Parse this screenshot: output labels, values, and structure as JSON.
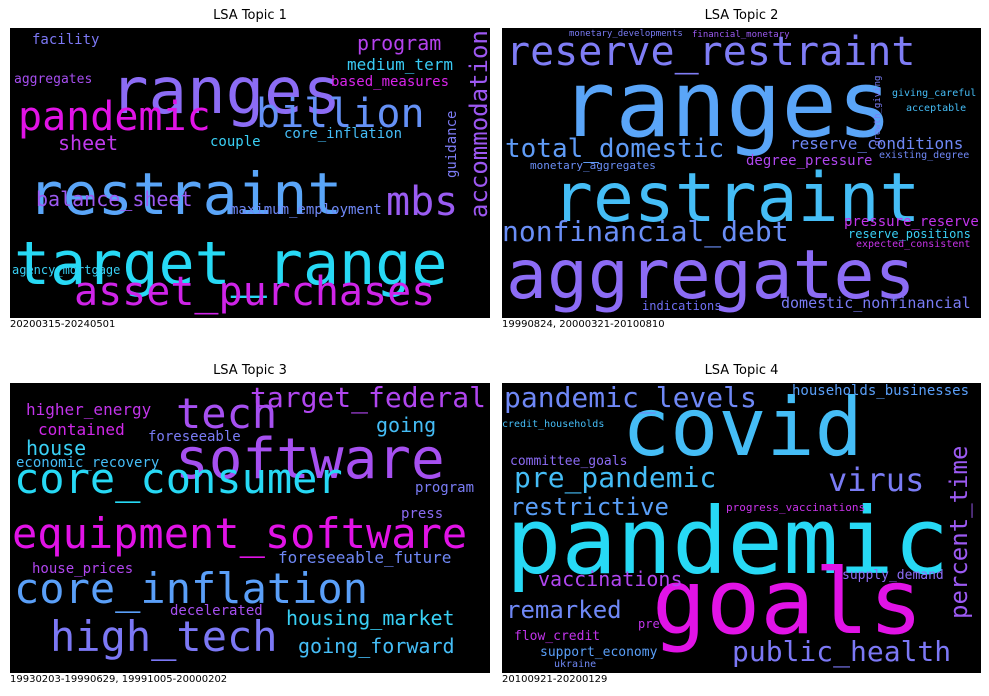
{
  "chart_data": [
    {
      "type": "wordcloud",
      "title": "LSA Topic 1",
      "caption": "20200315-20240501",
      "words": [
        {
          "text": "ranges",
          "color": "#8c6cf5"
        },
        {
          "text": "target_range",
          "color": "#27d9f5"
        },
        {
          "text": "restraint",
          "color": "#5aa5f8"
        },
        {
          "text": "pandemic",
          "color": "#e113e6"
        },
        {
          "text": "asset_purchases",
          "color": "#cf24e8"
        },
        {
          "text": "billion",
          "color": "#6591f6"
        },
        {
          "text": "mbs",
          "color": "#9a5cf2"
        },
        {
          "text": "accommodation",
          "color": "#9d58f2"
        },
        {
          "text": "program",
          "color": "#b542ee"
        },
        {
          "text": "balance_sheet",
          "color": "#9c5af2"
        },
        {
          "text": "sheet",
          "color": "#bf3aec"
        },
        {
          "text": "medium_term",
          "color": "#39cbf5"
        },
        {
          "text": "based_measures",
          "color": "#d824e9"
        },
        {
          "text": "core_inflation",
          "color": "#45bdf6"
        },
        {
          "text": "guidance",
          "color": "#7d7cf5"
        },
        {
          "text": "couple",
          "color": "#3ad0f5"
        },
        {
          "text": "maximum_employment",
          "color": "#6f88f6"
        },
        {
          "text": "facility",
          "color": "#7c78f5"
        },
        {
          "text": "aggregates",
          "color": "#a64ef0"
        },
        {
          "text": "agency_mortgage",
          "color": "#39d0f5"
        }
      ]
    },
    {
      "type": "wordcloud",
      "title": "LSA Topic 2",
      "caption": "19990824, 20000321-20100810",
      "words": [
        {
          "text": "ranges",
          "color": "#5aa5f8"
        },
        {
          "text": "restraint",
          "color": "#45bdf6"
        },
        {
          "text": "aggregates",
          "color": "#8c6cf5"
        },
        {
          "text": "reserve_restraint",
          "color": "#7f7df5"
        },
        {
          "text": "total_domestic",
          "color": "#5f9bf6"
        },
        {
          "text": "nonfinancial_debt",
          "color": "#6a8ef6"
        },
        {
          "text": "reserve_conditions",
          "color": "#6f88f6"
        },
        {
          "text": "degree_pressure",
          "color": "#b046ef"
        },
        {
          "text": "pressure_reserve",
          "color": "#c234eb"
        },
        {
          "text": "reserve_positions",
          "color": "#3ad0f5"
        },
        {
          "text": "expected_consistent",
          "color": "#c833ea"
        },
        {
          "text": "domestic_nonfinancial",
          "color": "#7a7cf5"
        },
        {
          "text": "monetary_aggregates",
          "color": "#6a8ef6"
        },
        {
          "text": "indications",
          "color": "#7070f5"
        },
        {
          "text": "monetary_developments",
          "color": "#7a7cf5"
        },
        {
          "text": "financial_monetary",
          "color": "#9c5af2"
        },
        {
          "text": "growth_giving",
          "color": "#7a7cf5"
        },
        {
          "text": "giving_careful",
          "color": "#45bdf6"
        },
        {
          "text": "acceptable",
          "color": "#45bdf6"
        },
        {
          "text": "existing_degree",
          "color": "#6f88f6"
        }
      ]
    },
    {
      "type": "wordcloud",
      "title": "LSA Topic 3",
      "caption": "19930203-19990629, 19991005-20000202",
      "words": [
        {
          "text": "software",
          "color": "#a650f0"
        },
        {
          "text": "equipment_software",
          "color": "#e113e6"
        },
        {
          "text": "core_consumer",
          "color": "#27d9f5"
        },
        {
          "text": "core_inflation",
          "color": "#5a9ff8"
        },
        {
          "text": "high_tech",
          "color": "#7c78f5"
        },
        {
          "text": "tech",
          "color": "#a650f0"
        },
        {
          "text": "target_federal",
          "color": "#b046ef"
        },
        {
          "text": "going",
          "color": "#45bdf6"
        },
        {
          "text": "house",
          "color": "#39d0f5"
        },
        {
          "text": "higher_energy",
          "color": "#c234eb"
        },
        {
          "text": "contained",
          "color": "#d028e9"
        },
        {
          "text": "foreseeable",
          "color": "#7a7cf5"
        },
        {
          "text": "economic_recovery",
          "color": "#45bdf6"
        },
        {
          "text": "program",
          "color": "#7a7cf5"
        },
        {
          "text": "press",
          "color": "#8c6cf5"
        },
        {
          "text": "foreseeable_future",
          "color": "#6f88f6"
        },
        {
          "text": "house_prices",
          "color": "#b046ef"
        },
        {
          "text": "decelerated",
          "color": "#a650f0"
        },
        {
          "text": "housing_market",
          "color": "#39d0f5"
        },
        {
          "text": "going_forward",
          "color": "#45bdf6"
        }
      ]
    },
    {
      "type": "wordcloud",
      "title": "LSA Topic 4",
      "caption": "20100921-20200129",
      "words": [
        {
          "text": "pandemic",
          "color": "#27d9f5"
        },
        {
          "text": "covid",
          "color": "#45bdf6"
        },
        {
          "text": "goals",
          "color": "#e113e6"
        },
        {
          "text": "pandemic_levels",
          "color": "#6f88f6"
        },
        {
          "text": "pre_pandemic",
          "color": "#45bdf6"
        },
        {
          "text": "virus",
          "color": "#7a7cf5"
        },
        {
          "text": "restrictive",
          "color": "#5a9ff8"
        },
        {
          "text": "percent_time",
          "color": "#9c5af2"
        },
        {
          "text": "vaccinations",
          "color": "#b046ef"
        },
        {
          "text": "remarked",
          "color": "#6f88f6"
        },
        {
          "text": "public_health",
          "color": "#7c78f5"
        },
        {
          "text": "households_businesses",
          "color": "#5a9ff8"
        },
        {
          "text": "credit_households",
          "color": "#45bdf6"
        },
        {
          "text": "committee_goals",
          "color": "#8c6cf5"
        },
        {
          "text": "progress_vaccinations",
          "color": "#c833ea"
        },
        {
          "text": "supply_demand",
          "color": "#8c6cf5"
        },
        {
          "text": "flow_credit",
          "color": "#c234eb"
        },
        {
          "text": "pre",
          "color": "#c234eb"
        },
        {
          "text": "support_economy",
          "color": "#5a9ff8"
        },
        {
          "text": "ukraine",
          "color": "#6f88f6"
        }
      ]
    }
  ]
}
